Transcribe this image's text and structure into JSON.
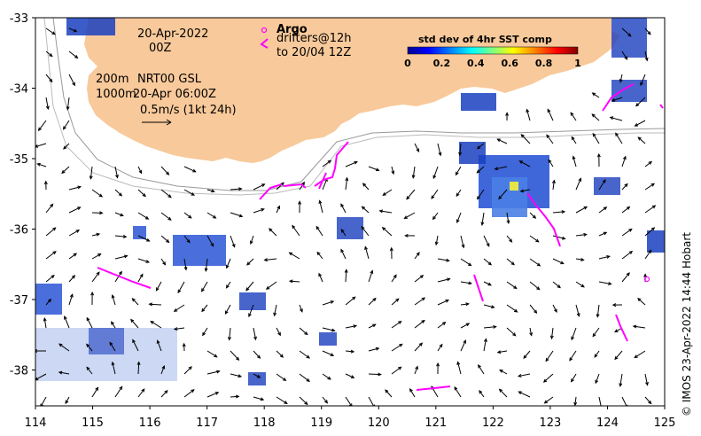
{
  "map": {
    "date_line1": "20-Apr-2022",
    "date_line2": "00Z",
    "depth_200": "200m",
    "depth_1000": "1000m",
    "product": "NRT00 GSL",
    "product_time": "20-Apr 06:00Z",
    "scale_label": "0.5m/s (1kt 24h)",
    "argo_label": "Argo",
    "drifters_label": "drifters@12h",
    "drifters_to": "to 20/04 12Z",
    "colorbar_title": "std dev of 4hr SST comp",
    "colorbar_ticks": [
      "0",
      "0.2",
      "0.4",
      "0.6",
      "0.8",
      "1"
    ],
    "colorbar_colors": [
      "#00008f",
      "#0000ff",
      "#0080ff",
      "#00ffff",
      "#80ff80",
      "#ffff00",
      "#ff8000",
      "#ff0000",
      "#800000"
    ],
    "lon_ticks": [
      "114",
      "115",
      "116",
      "117",
      "118",
      "119",
      "120",
      "121",
      "122",
      "123",
      "124",
      "125"
    ],
    "lat_ticks": [
      "-33",
      "-34",
      "-35",
      "-36",
      "-37",
      "-38"
    ],
    "credit": "© IMOS 23-Apr-2022 14:44 Hobart",
    "land_color": "#f8c99a",
    "drifter_color": "#ff00ff"
  }
}
